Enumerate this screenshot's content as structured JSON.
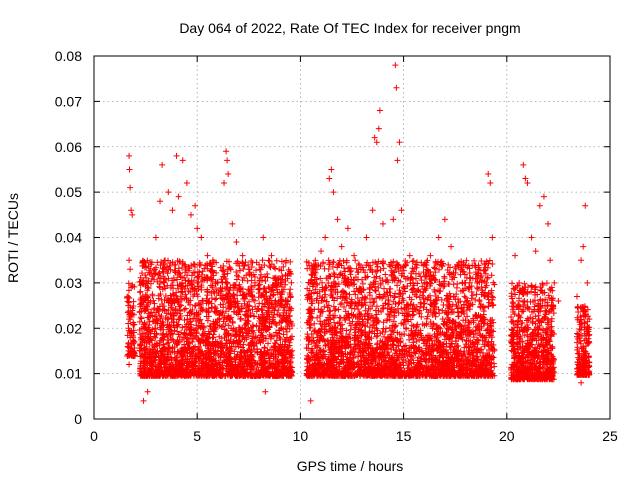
{
  "chart_data": {
    "type": "scatter",
    "title": "Day 064 of 2022, Rate Of TEC Index for receiver pngm",
    "xlabel": "GPS time / hours",
    "ylabel": "ROTI / TECUs",
    "xlim": [
      0,
      25
    ],
    "ylim": [
      0,
      0.08
    ],
    "x_ticks": [
      0,
      5,
      10,
      15,
      20,
      25
    ],
    "x_tick_labels": [
      "0",
      "5",
      "10",
      "15",
      "20",
      "25"
    ],
    "y_ticks": [
      0,
      0.01,
      0.02,
      0.03,
      0.04,
      0.05,
      0.06,
      0.07,
      0.08
    ],
    "y_tick_labels": [
      "0",
      "0.01",
      "0.02",
      "0.03",
      "0.04",
      "0.05",
      "0.06",
      "0.07",
      "0.08"
    ],
    "grid": true,
    "marker": "+",
    "color": "#ff0000",
    "series": [
      {
        "name": "ROTI",
        "points": [
          [
            1.7,
            0.058
          ],
          [
            1.72,
            0.055
          ],
          [
            1.75,
            0.051
          ],
          [
            1.8,
            0.046
          ],
          [
            1.85,
            0.045
          ],
          [
            1.7,
            0.035
          ],
          [
            1.75,
            0.033
          ],
          [
            1.8,
            0.029
          ],
          [
            1.7,
            0.022
          ],
          [
            1.75,
            0.018
          ],
          [
            1.8,
            0.014
          ],
          [
            1.7,
            0.012
          ],
          [
            2.4,
            0.004
          ],
          [
            2.6,
            0.006
          ],
          [
            2.8,
            0.032
          ],
          [
            3.0,
            0.04
          ],
          [
            3.2,
            0.048
          ],
          [
            3.3,
            0.056
          ],
          [
            3.6,
            0.05
          ],
          [
            3.8,
            0.046
          ],
          [
            4.0,
            0.058
          ],
          [
            4.1,
            0.049
          ],
          [
            4.3,
            0.057
          ],
          [
            4.5,
            0.052
          ],
          [
            4.7,
            0.045
          ],
          [
            4.9,
            0.047
          ],
          [
            5.0,
            0.042
          ],
          [
            5.2,
            0.04
          ],
          [
            5.5,
            0.036
          ],
          [
            5.7,
            0.034
          ],
          [
            6.0,
            0.03
          ],
          [
            6.3,
            0.052
          ],
          [
            6.4,
            0.059
          ],
          [
            6.45,
            0.057
          ],
          [
            6.5,
            0.054
          ],
          [
            6.7,
            0.043
          ],
          [
            6.9,
            0.039
          ],
          [
            7.2,
            0.036
          ],
          [
            7.5,
            0.033
          ],
          [
            7.8,
            0.03
          ],
          [
            8.0,
            0.034
          ],
          [
            8.2,
            0.04
          ],
          [
            8.3,
            0.006
          ],
          [
            8.6,
            0.036
          ],
          [
            8.8,
            0.03
          ],
          [
            9.0,
            0.025
          ],
          [
            9.3,
            0.02
          ],
          [
            10.5,
            0.004
          ],
          [
            10.6,
            0.03
          ],
          [
            10.8,
            0.033
          ],
          [
            11.0,
            0.037
          ],
          [
            11.2,
            0.04
          ],
          [
            11.4,
            0.053
          ],
          [
            11.5,
            0.055
          ],
          [
            11.6,
            0.05
          ],
          [
            11.8,
            0.044
          ],
          [
            12.0,
            0.038
          ],
          [
            12.3,
            0.042
          ],
          [
            12.6,
            0.036
          ],
          [
            12.9,
            0.028
          ],
          [
            13.2,
            0.04
          ],
          [
            13.5,
            0.046
          ],
          [
            13.6,
            0.062
          ],
          [
            13.7,
            0.061
          ],
          [
            13.8,
            0.064
          ],
          [
            13.85,
            0.068
          ],
          [
            14.0,
            0.043
          ],
          [
            14.3,
            0.034
          ],
          [
            14.5,
            0.044
          ],
          [
            14.6,
            0.078
          ],
          [
            14.65,
            0.073
          ],
          [
            14.7,
            0.057
          ],
          [
            14.8,
            0.061
          ],
          [
            14.9,
            0.046
          ],
          [
            15.1,
            0.034
          ],
          [
            15.3,
            0.036
          ],
          [
            15.6,
            0.032
          ],
          [
            16.0,
            0.03
          ],
          [
            16.3,
            0.036
          ],
          [
            16.7,
            0.04
          ],
          [
            17.0,
            0.044
          ],
          [
            17.3,
            0.038
          ],
          [
            17.6,
            0.034
          ],
          [
            18.0,
            0.03
          ],
          [
            18.3,
            0.028
          ],
          [
            18.6,
            0.032
          ],
          [
            19.0,
            0.03
          ],
          [
            19.1,
            0.054
          ],
          [
            19.2,
            0.052
          ],
          [
            19.3,
            0.04
          ],
          [
            20.4,
            0.036
          ],
          [
            20.6,
            0.03
          ],
          [
            20.8,
            0.056
          ],
          [
            20.9,
            0.053
          ],
          [
            21.0,
            0.052
          ],
          [
            21.2,
            0.04
          ],
          [
            21.4,
            0.037
          ],
          [
            21.6,
            0.047
          ],
          [
            21.8,
            0.049
          ],
          [
            22.0,
            0.043
          ],
          [
            22.1,
            0.035
          ],
          [
            22.3,
            0.03
          ],
          [
            22.5,
            0.026
          ],
          [
            23.4,
            0.027
          ],
          [
            23.6,
            0.035
          ],
          [
            23.7,
            0.038
          ],
          [
            23.8,
            0.047
          ],
          [
            23.9,
            0.03
          ],
          [
            23.5,
            0.012
          ],
          [
            23.6,
            0.008
          ],
          [
            23.8,
            0.01
          ]
        ]
      }
    ]
  }
}
